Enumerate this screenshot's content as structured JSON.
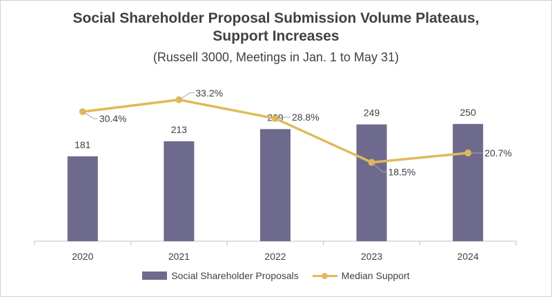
{
  "colors": {
    "bar": "#6e6a8e",
    "line": "#e0b95a",
    "axis": "#bfbfbf",
    "text": "#404040",
    "leader": "#a6a6a6"
  },
  "chart_data": {
    "type": "bar",
    "title_line1": "Social Shareholder Proposal Submission Volume Plateaus,",
    "title_line2": "Support Increases",
    "subtitle": "(Russell 3000, Meetings in Jan. 1 to May 31)",
    "categories": [
      "2020",
      "2021",
      "2022",
      "2023",
      "2024"
    ],
    "series": [
      {
        "name": "Social Shareholder Proposals",
        "type": "bar",
        "values": [
          181,
          213,
          239,
          249,
          250
        ],
        "labels": [
          "181",
          "213",
          "239",
          "249",
          "250"
        ],
        "ylim": [
          0,
          360
        ]
      },
      {
        "name": "Median Support",
        "type": "line",
        "values": [
          30.4,
          33.2,
          28.8,
          18.5,
          20.7
        ],
        "labels": [
          "30.4%",
          "33.2%",
          "28.8%",
          "18.5%",
          "20.7%"
        ],
        "ylim": [
          0,
          55
        ]
      }
    ],
    "grid": false,
    "legend": "bottom"
  }
}
